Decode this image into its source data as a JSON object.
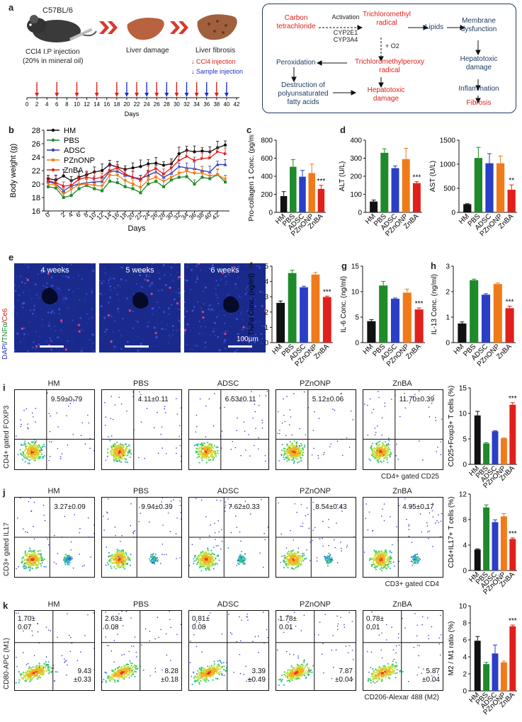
{
  "panels": {
    "a": "a",
    "b": "b",
    "c": "c",
    "d": "d",
    "e": "e",
    "f": "f",
    "g": "g",
    "h": "h",
    "i": "i",
    "j": "j",
    "k": "k"
  },
  "panel_a": {
    "strain": "C57BL/6",
    "injection_line1": "CCl4 I.P injection",
    "injection_line2": "(20% in mineral oil)",
    "liver_damage": "Liver damage",
    "liver_fibrosis": "Liver fibrosis",
    "legend_ccl4": "CCl4 injection",
    "legend_sample": "Sample injection",
    "days_label": "Days",
    "day_ticks": [
      "0",
      "2",
      "4",
      "6",
      "8",
      "10",
      "12",
      "14",
      "16",
      "18",
      "20",
      "22",
      "24",
      "26",
      "28",
      "30",
      "32",
      "34",
      "36",
      "38",
      "40",
      "42"
    ],
    "ccl4_days": [
      2,
      6,
      10,
      14,
      18,
      22,
      26,
      30,
      34,
      38
    ],
    "sample_days": [
      20,
      24,
      28,
      32,
      36,
      40
    ],
    "colors": {
      "ccl4": "#e0201b",
      "sample": "#2032c8",
      "chevron": "#d9382b"
    }
  },
  "pathway": {
    "carbon_tetrachloride": "Carbon\ntetrachloride",
    "activation": "Activation",
    "cyp": "CYP2E1\nCYP3A4",
    "trichloromethyl": "Trichloromethyl\nradical",
    "lipids": "Lipids",
    "membrane": "Membrane\ndysfunction",
    "o2": "+ O2",
    "hepatotoxic_damage1": "Hepatotoxic\ndamage",
    "peroxidation": "Peroxidation",
    "peroxy": "Trichloromethylperoxy\nradical",
    "inflammation": "Inflammation",
    "destruction": "Destruction of\npolyunsaturated\nfatty acids",
    "hepatotoxic_damage2": "Hepatotoxic\ndamage",
    "fibrosis": "Fibrosis"
  },
  "groups": [
    "HM",
    "PBS",
    "ADSC",
    "PZnONP",
    "ZnBA"
  ],
  "group_colors": [
    "#111111",
    "#1f8a2a",
    "#2a3ec6",
    "#f07a1a",
    "#e0201b"
  ],
  "chart_data": [
    {
      "id": "b",
      "type": "line",
      "xlabel": "Days",
      "ylabel": "Body weight (g)",
      "ylim": [
        16,
        28
      ],
      "yticks": [
        16,
        18,
        20,
        22,
        24,
        26,
        28
      ],
      "x": [
        0,
        1,
        2,
        4,
        6,
        8,
        10,
        12,
        14,
        16,
        18,
        19,
        20,
        22,
        24,
        26,
        28,
        30,
        32,
        34,
        36,
        38,
        40,
        42
      ],
      "xtick_labels": [
        "0",
        "2",
        "4",
        "6",
        "8",
        "10",
        "12",
        "14",
        "16",
        "18",
        "20",
        "22",
        "24",
        "26",
        "28",
        "30",
        "32",
        "34",
        "36",
        "38",
        "40",
        "42"
      ],
      "legend": [
        "HM",
        "PBS",
        "ADSC",
        "PZnONP",
        "ZnBA"
      ],
      "series": [
        {
          "name": "HM",
          "values": [
            20.8,
            20.6,
            21.2,
            20.5,
            21.0,
            21.4,
            21.8,
            22.0,
            22.9,
            22.5,
            22.2,
            22.4,
            22.6,
            23.0,
            23.1,
            22.8,
            23.0,
            24.5,
            25.0,
            24.8,
            24.9,
            24.8,
            25.4,
            25.8
          ]
        },
        {
          "name": "PBS",
          "values": [
            19.6,
            19.4,
            18.0,
            18.3,
            19.3,
            19.8,
            19.3,
            19.0,
            20.4,
            20.2,
            19.6,
            19.3,
            18.7,
            20.0,
            20.4,
            19.6,
            20.6,
            21.0,
            21.1,
            20.0,
            21.0,
            20.8,
            21.4,
            20.3
          ]
        },
        {
          "name": "ADSC",
          "values": [
            20.4,
            20.0,
            19.0,
            19.7,
            20.0,
            20.2,
            20.3,
            20.4,
            21.9,
            21.9,
            21.3,
            21.0,
            20.8,
            21.3,
            21.8,
            21.0,
            21.6,
            22.6,
            22.4,
            22.3,
            22.0,
            21.8,
            22.9,
            22.9
          ]
        },
        {
          "name": "PZnONP",
          "values": [
            20.0,
            19.8,
            18.5,
            19.2,
            19.9,
            20.0,
            19.8,
            19.7,
            21.3,
            21.3,
            20.5,
            20.0,
            19.5,
            20.6,
            21.0,
            20.4,
            21.0,
            21.6,
            21.9,
            21.6,
            21.6,
            21.2,
            21.4,
            20.7
          ]
        },
        {
          "name": "ZnBA",
          "values": [
            20.5,
            20.2,
            19.7,
            19.8,
            20.7,
            21.0,
            20.8,
            21.0,
            22.0,
            22.4,
            21.5,
            21.0,
            20.6,
            21.8,
            22.3,
            21.5,
            22.4,
            23.5,
            24.1,
            23.5,
            23.8,
            23.9,
            24.8,
            24.5
          ]
        }
      ]
    },
    {
      "id": "c",
      "type": "bar",
      "categories": [
        "HM",
        "PBS",
        "ADSC",
        "PZnONP",
        "ZnBA"
      ],
      "values": [
        180,
        505,
        395,
        435,
        260
      ],
      "errors": [
        50,
        80,
        70,
        100,
        40
      ],
      "ylabel": "Pro-collagen 1 Conc. (pg/ml)",
      "ylim": [
        0,
        800
      ],
      "yticks": [
        0,
        200,
        400,
        600,
        800
      ],
      "sig": "***"
    },
    {
      "id": "d1",
      "type": "bar",
      "categories": [
        "HM",
        "PBS",
        "ADSC",
        "PZnONP",
        "ZnBA"
      ],
      "values": [
        60,
        330,
        245,
        295,
        162
      ],
      "errors": [
        8,
        22,
        12,
        60,
        8
      ],
      "ylabel": "ALT (U/L)",
      "ylim": [
        0,
        400
      ],
      "yticks": [
        0,
        100,
        200,
        300,
        400
      ],
      "sig": "***"
    },
    {
      "id": "d2",
      "type": "bar",
      "categories": [
        "HM",
        "PBS",
        "ADSC",
        "PZnONP",
        "ZnBA"
      ],
      "values": [
        170,
        1130,
        1020,
        1020,
        470
      ],
      "errors": [
        10,
        220,
        200,
        150,
        100
      ],
      "ylabel": "AST (U/L)",
      "ylim": [
        0,
        1500
      ],
      "yticks": [
        0,
        500,
        1000,
        1500
      ],
      "sig": "**"
    },
    {
      "id": "f",
      "type": "bar",
      "categories": [
        "HM",
        "PBS",
        "ADSC",
        "PZnONP",
        "ZnBA"
      ],
      "values": [
        2.6,
        4.55,
        3.62,
        4.45,
        2.98
      ],
      "errors": [
        0.12,
        0.18,
        0.07,
        0.14,
        0.06
      ],
      "ylabel": "TNFα Conc. (ng/ml)",
      "ylim": [
        0,
        5
      ],
      "yticks": [
        0,
        1,
        2,
        3,
        4,
        5
      ],
      "sig": "***"
    },
    {
      "id": "g",
      "type": "bar",
      "categories": [
        "HM",
        "PBS",
        "ADSC",
        "PZnONP",
        "ZnBA"
      ],
      "values": [
        4.2,
        11.2,
        8.6,
        9.8,
        6.5
      ],
      "errors": [
        0.3,
        0.8,
        0.15,
        0.7,
        0.3
      ],
      "ylabel": "IL-6 Conc. (ng/ml)",
      "ylim": [
        0,
        15
      ],
      "yticks": [
        0,
        5,
        10,
        15
      ],
      "sig": "***"
    },
    {
      "id": "h",
      "type": "bar",
      "categories": [
        "HM",
        "PBS",
        "ADSC",
        "PZnONP",
        "ZnBA"
      ],
      "values": [
        0.75,
        2.45,
        1.88,
        2.3,
        1.35
      ],
      "errors": [
        0.06,
        0.04,
        0.04,
        0.04,
        0.08
      ],
      "ylabel": "IL-13 Conc. (ng/ml)",
      "ylim": [
        0,
        3
      ],
      "yticks": [
        0,
        1,
        2,
        3
      ],
      "sig": "***"
    },
    {
      "id": "i",
      "type": "bar",
      "categories": [
        "HM",
        "PBS",
        "ADSC",
        "PZnONP",
        "ZnBA"
      ],
      "values": [
        9.6,
        4.1,
        6.5,
        5.1,
        11.7
      ],
      "errors": [
        0.8,
        0.15,
        0.12,
        0.08,
        0.4
      ],
      "ylabel": "CD25+Foxp3+ T cells (%)",
      "ylim": [
        0,
        15
      ],
      "yticks": [
        0,
        5,
        10,
        15
      ],
      "sig": "***"
    },
    {
      "id": "j",
      "type": "bar",
      "categories": [
        "HM",
        "PBS",
        "ADSC",
        "PZnONP",
        "ZnBA"
      ],
      "values": [
        3.3,
        9.9,
        7.6,
        8.5,
        4.95
      ],
      "errors": [
        0.1,
        0.4,
        0.35,
        0.45,
        0.17
      ],
      "ylabel": "CD4+IL17+ T cells (%)",
      "ylim": [
        0,
        12
      ],
      "yticks": [
        0,
        4,
        8,
        12
      ],
      "sig": "***"
    },
    {
      "id": "k",
      "type": "bar",
      "categories": [
        "HM",
        "PBS",
        "ADSC",
        "PZnONP",
        "ZnBA"
      ],
      "values": [
        5.9,
        3.15,
        4.4,
        3.35,
        7.6
      ],
      "errors": [
        0.5,
        0.2,
        1.0,
        0.15,
        0.15
      ],
      "ylabel": "M2 / M1 ratio (%)",
      "ylim": [
        0,
        10
      ],
      "yticks": [
        0,
        2,
        4,
        6,
        8,
        10
      ],
      "sig": "***"
    }
  ],
  "panel_e": {
    "weeks": [
      "4 weeks",
      "5 weeks",
      "6 weeks"
    ],
    "ylabel_dapi": "DAPI",
    "ylabel_tnf": "TNFα",
    "ylabel_ce6": "Ce6",
    "scale": "100µm"
  },
  "flow": {
    "i": {
      "ylabel": "CD4+ gated FOXP3",
      "xlabel": "CD4+ gated CD25",
      "values": [
        "9.59±0.79",
        "4.11±0.11",
        "6.53±0.11",
        "5.12±0.06",
        "11.70±0.39"
      ]
    },
    "j": {
      "ylabel": "CD3+ gated IL17",
      "xlabel": "CD3+ gated CD4",
      "values": [
        "3.27±0.09",
        "9.94±0.39",
        "7.62±0.33",
        "8.54±0.43",
        "4.95±0.17"
      ]
    },
    "k": {
      "ylabel": "CD80-APC (M1)",
      "xlabel": "CD206-Alexar 488 (M2)",
      "m1": [
        "1.70±\n0.07",
        "2.63±\n0.08",
        "0.81±\n0.08",
        "1.78±\n0.01",
        "0.78±\n0.01"
      ],
      "m2": [
        "9.43\n±0.33",
        "8.28\n±0.18",
        "3.39\n±0.49",
        "7.87\n±0.04",
        "5.87\n±0.04"
      ]
    }
  }
}
